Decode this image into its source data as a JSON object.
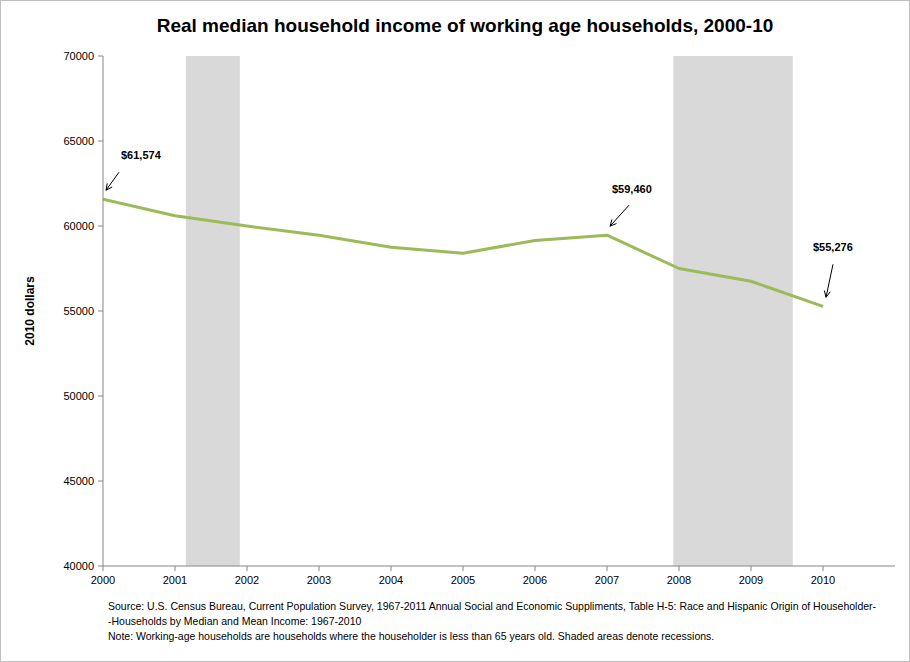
{
  "chart_data": {
    "type": "line",
    "title": "Real median household income of working age households, 2000-10",
    "y_label": "2010 dollars",
    "x": [
      2000,
      2001,
      2002,
      2003,
      2004,
      2005,
      2006,
      2007,
      2008,
      2009,
      2010
    ],
    "values": [
      61574,
      60600,
      60000,
      59450,
      58750,
      58400,
      59150,
      59460,
      57500,
      56750,
      55276
    ],
    "value_labels": [
      "$61,574",
      null,
      null,
      null,
      null,
      null,
      null,
      "$59,460",
      null,
      null,
      "$55,276"
    ],
    "data_labels": true,
    "color": "#9bbb59",
    "xlim": [
      2000,
      2011
    ],
    "xticks": [
      2000,
      2001,
      2002,
      2003,
      2004,
      2005,
      2006,
      2007,
      2008,
      2009,
      2010
    ],
    "ylim": [
      40000,
      70000
    ],
    "yticks": [
      40000,
      45000,
      50000,
      55000,
      60000,
      65000,
      70000
    ],
    "grid": false,
    "recessions": [
      [
        2001.15,
        2001.9
      ],
      [
        2007.92,
        2009.58
      ]
    ],
    "notes": [
      "Source: U.S. Census Bureau, Current Population Survey, 1967-2011 Annual Social and Economic Suppliments, Table H-5: Race and Hispanic Origin of Householder-",
      "-Households by Median and Mean Income: 1967-2010",
      "Note: Working-age households are households where the householder is less than 65 years old.  Shaded areas denote recessions."
    ]
  }
}
